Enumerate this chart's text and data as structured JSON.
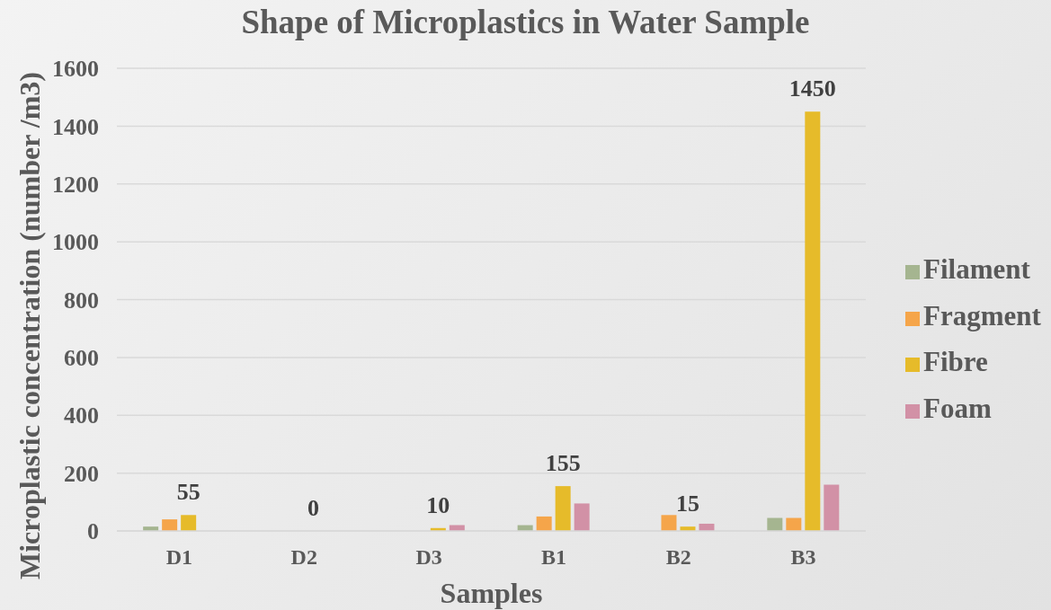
{
  "chart_data": {
    "type": "bar",
    "title": "Shape of Microplastics in Water Sample",
    "xlabel": "Samples",
    "ylabel": "Microplastic concentration (number /m3)",
    "categories": [
      "D1",
      "D2",
      "D3",
      "B1",
      "B2",
      "B3"
    ],
    "series": [
      {
        "name": "Filament",
        "color": "#a5b590",
        "values": [
          15,
          0,
          0,
          20,
          0,
          45
        ]
      },
      {
        "name": "Fragment",
        "color": "#f5a54a",
        "values": [
          40,
          0,
          0,
          50,
          55,
          45
        ]
      },
      {
        "name": "Fibre",
        "color": "#e6bb2a",
        "values": [
          55,
          0,
          10,
          155,
          15,
          1450
        ],
        "value_labels": [
          "55",
          "0",
          "10",
          "155",
          "15",
          "1450"
        ]
      },
      {
        "name": "Foam",
        "color": "#d291a6",
        "values": [
          0,
          0,
          20,
          95,
          25,
          160
        ]
      }
    ],
    "ylim": [
      0,
      1600
    ],
    "yticks": [
      0,
      200,
      400,
      600,
      800,
      1000,
      1200,
      1400,
      1600
    ],
    "grid": "y",
    "legend": "right"
  }
}
